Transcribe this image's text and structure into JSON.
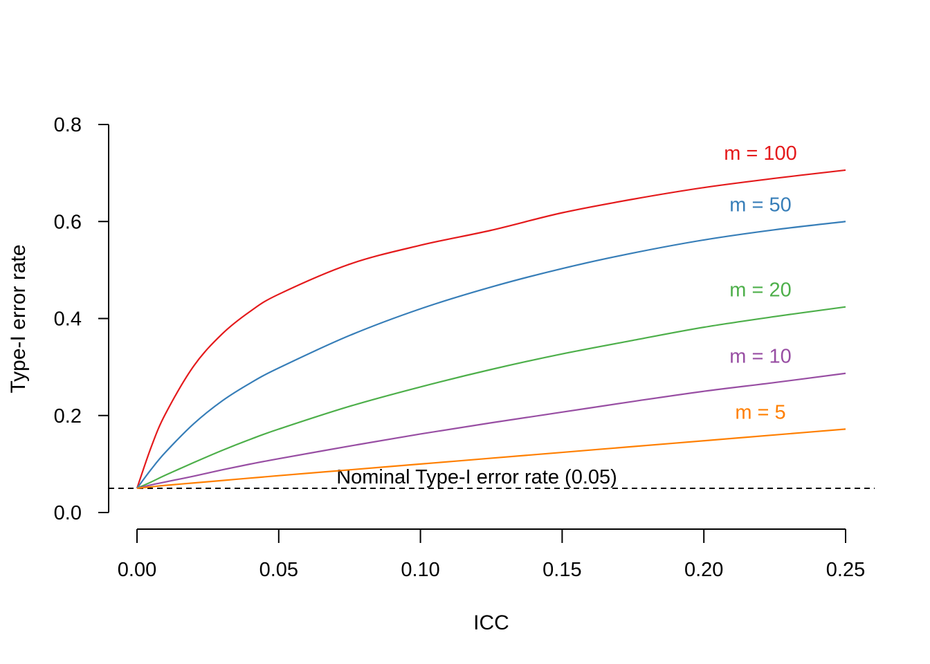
{
  "chart_data": {
    "type": "line",
    "title": "",
    "xlabel": "ICC",
    "ylabel": "Type-I error rate",
    "xlim": [
      0,
      0.25
    ],
    "ylim": [
      0,
      0.8
    ],
    "x_ticks": [
      "0.00",
      "0.05",
      "0.10",
      "0.15",
      "0.20",
      "0.25"
    ],
    "y_ticks": [
      "0.0",
      "0.2",
      "0.4",
      "0.6",
      "0.8"
    ],
    "grid": false,
    "reference_line": {
      "y": 0.05,
      "style": "dashed",
      "label": "Nominal Type-I error rate (0.05)"
    },
    "x": [
      0,
      0.005,
      0.01,
      0.02,
      0.03,
      0.04,
      0.05,
      0.075,
      0.1,
      0.125,
      0.15,
      0.175,
      0.2,
      0.225,
      0.25
    ],
    "series": [
      {
        "name": "m = 100",
        "color": "#E41A1C",
        "values": [
          0.05,
          0.135,
          0.203,
          0.302,
          0.368,
          0.415,
          0.45,
          0.512,
          0.551,
          0.582,
          0.618,
          0.646,
          0.67,
          0.689,
          0.706
        ]
      },
      {
        "name": "m = 50",
        "color": "#377EB8",
        "values": [
          0.05,
          0.089,
          0.124,
          0.183,
          0.23,
          0.267,
          0.298,
          0.365,
          0.42,
          0.465,
          0.503,
          0.535,
          0.562,
          0.583,
          0.6
        ]
      },
      {
        "name": "m = 20",
        "color": "#4DAF4A",
        "values": [
          0.05,
          0.063,
          0.077,
          0.103,
          0.128,
          0.151,
          0.172,
          0.219,
          0.259,
          0.295,
          0.327,
          0.355,
          0.382,
          0.404,
          0.424
        ]
      },
      {
        "name": "m = 10",
        "color": "#984EA3",
        "values": [
          0.05,
          0.057,
          0.063,
          0.075,
          0.088,
          0.1,
          0.111,
          0.137,
          0.162,
          0.185,
          0.207,
          0.229,
          0.25,
          0.268,
          0.287
        ]
      },
      {
        "name": "m = 5",
        "color": "#FF7F00",
        "values": [
          0.05,
          0.053,
          0.056,
          0.061,
          0.066,
          0.071,
          0.076,
          0.088,
          0.1,
          0.112,
          0.124,
          0.136,
          0.148,
          0.16,
          0.172
        ]
      }
    ]
  }
}
